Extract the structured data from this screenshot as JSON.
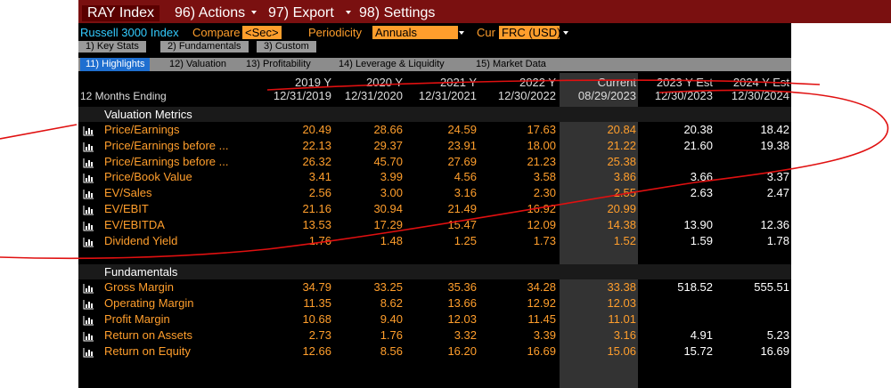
{
  "toolbar": {
    "security": "RAY Index",
    "menu": [
      "96) Actions",
      "97) Export",
      "98) Settings"
    ]
  },
  "filters": {
    "name": "Russell 3000 Index",
    "compare_label": "Compare",
    "compare_value": "<Sec>",
    "periodicity_label": "Periodicity",
    "periodicity_value": "Annuals",
    "currency_label": "Cur",
    "currency_value": "FRC (USD)"
  },
  "tabs": [
    "1) Key Stats",
    "2) Fundamentals",
    "3) Custom"
  ],
  "subtabs": [
    "11) Highlights",
    "12) Valuation",
    "13) Profitability",
    "14) Leverage & Liquidity",
    "15) Market Data"
  ],
  "table": {
    "period_label": "12 Months Ending",
    "columns": [
      {
        "period": "2019 Y",
        "date": "12/31/2019"
      },
      {
        "period": "2020 Y",
        "date": "12/31/2020"
      },
      {
        "period": "2021 Y",
        "date": "12/31/2021"
      },
      {
        "period": "2022 Y",
        "date": "12/30/2022"
      },
      {
        "period": "Current",
        "date": "08/29/2023"
      },
      {
        "period": "2023 Y Est",
        "date": "12/30/2023"
      },
      {
        "period": "2024 Y Est",
        "date": "12/30/2024"
      }
    ],
    "sections": [
      {
        "title": "Valuation Metrics",
        "rows": [
          {
            "label": "Price/Earnings",
            "values": [
              "20.49",
              "28.66",
              "24.59",
              "17.63",
              "20.84",
              "20.38",
              "18.42"
            ]
          },
          {
            "label": "Price/Earnings before ...",
            "values": [
              "22.13",
              "29.37",
              "23.91",
              "18.00",
              "21.22",
              "21.60",
              "19.38"
            ]
          },
          {
            "label": "Price/Earnings before ...",
            "values": [
              "26.32",
              "45.70",
              "27.69",
              "21.23",
              "25.38",
              null,
              null
            ]
          },
          {
            "label": "Price/Book Value",
            "values": [
              "3.41",
              "3.99",
              "4.56",
              "3.58",
              "3.86",
              "3.66",
              "3.37"
            ]
          },
          {
            "label": "EV/Sales",
            "values": [
              "2.56",
              "3.00",
              "3.16",
              "2.30",
              "2.55",
              "2.63",
              "2.47"
            ]
          },
          {
            "label": "EV/EBIT",
            "values": [
              "21.16",
              "30.94",
              "21.49",
              "16.92",
              "20.99",
              null,
              null
            ]
          },
          {
            "label": "EV/EBITDA",
            "values": [
              "13.53",
              "17.29",
              "15.47",
              "12.09",
              "14.38",
              "13.90",
              "12.36"
            ]
          },
          {
            "label": "Dividend Yield",
            "values": [
              "1.76",
              "1.48",
              "1.25",
              "1.73",
              "1.52",
              "1.59",
              "1.78"
            ]
          }
        ]
      },
      {
        "title": "Fundamentals",
        "rows": [
          {
            "label": "Gross Margin",
            "values": [
              "34.79",
              "33.25",
              "35.36",
              "34.28",
              "33.38",
              "518.52",
              "555.51"
            ]
          },
          {
            "label": "Operating Margin",
            "values": [
              "11.35",
              "8.62",
              "13.66",
              "12.92",
              "12.03",
              null,
              null
            ]
          },
          {
            "label": "Profit Margin",
            "values": [
              "10.68",
              "9.40",
              "12.03",
              "11.45",
              "11.01",
              null,
              null
            ]
          },
          {
            "label": "Return on Assets",
            "values": [
              "2.73",
              "1.76",
              "3.32",
              "3.39",
              "3.16",
              "4.91",
              "5.23"
            ]
          },
          {
            "label": "Return on Equity",
            "values": [
              "12.66",
              "8.56",
              "16.20",
              "16.69",
              "15.06",
              "15.72",
              "16.69"
            ]
          }
        ]
      }
    ]
  }
}
